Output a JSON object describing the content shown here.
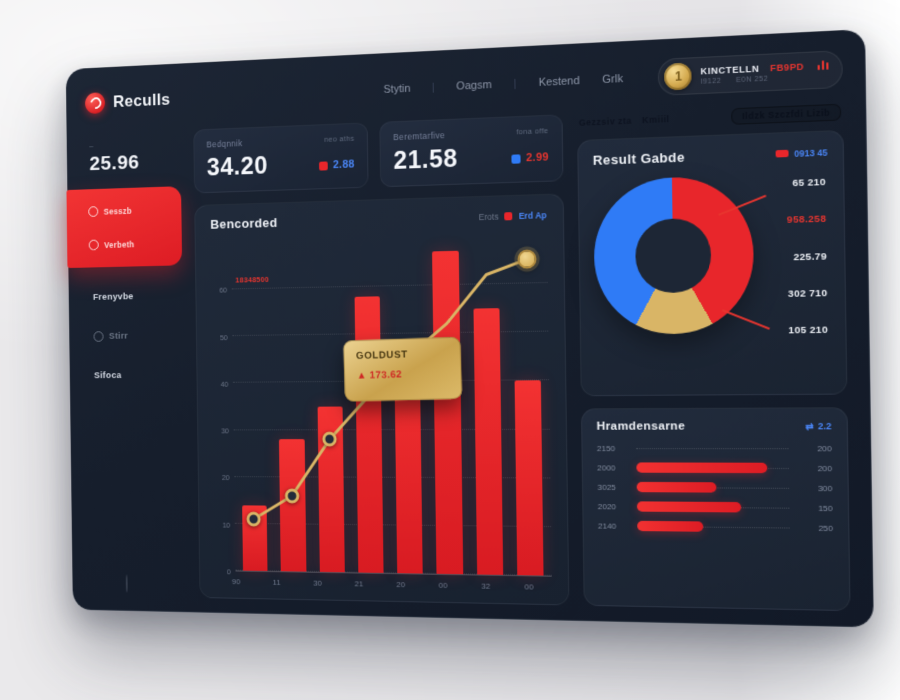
{
  "app": {
    "logo_text": "Reculls"
  },
  "nav": {
    "items": [
      "Stytin",
      "Oagsm",
      "Kestend",
      "Grlk"
    ]
  },
  "user_badge": {
    "coin_text": "1",
    "name": "KINCTELLN",
    "alert": "FB9PD",
    "sub_left": "I9122",
    "sub_right": "E0N 252"
  },
  "sidebar": {
    "stat_label": "–",
    "stat_value": "25.96",
    "active_items": [
      {
        "label": "Sesszb"
      },
      {
        "label": "Verbeth"
      }
    ],
    "items": [
      "Frenyvbe",
      "Stirr",
      "Sifoca"
    ]
  },
  "kpis": [
    {
      "label": "Bedqnnik",
      "side_label": "neo aths",
      "value": "34.20",
      "badge_value": "2.88",
      "marker_color": "#e8262b",
      "value_color": "#4a86f7"
    },
    {
      "label": "Beremtarfive",
      "side_label": "fona offe",
      "value": "21.58",
      "badge_value": "2.99",
      "marker_color": "#2f7bf6",
      "value_color": "#e8352f"
    }
  ],
  "main_chart": {
    "title": "Bencorded",
    "legend_muted": "Erots",
    "legend_value": "Erd Ap",
    "annotation": "18348500",
    "tooltip": {
      "title": "GOLDUST",
      "value": "▲ 173.62"
    },
    "chart_data": {
      "type": "bar+line",
      "categories": [
        "90",
        "11",
        "30",
        "21",
        "20",
        "00",
        "32",
        "00"
      ],
      "series": [
        {
          "name": "bars",
          "values": [
            14,
            28,
            35,
            58,
            45,
            67,
            55,
            40
          ]
        },
        {
          "name": "line",
          "values": [
            11,
            16,
            28,
            37,
            45,
            52,
            62,
            65
          ]
        }
      ],
      "yticks": [
        "60",
        "50",
        "40",
        "30",
        "20",
        "10",
        "0"
      ],
      "ylim": [
        0,
        70
      ],
      "dot_indices": [
        0,
        1,
        2,
        7
      ],
      "bar_color": "#e8262b",
      "line_color": "#d9b566",
      "grid": true,
      "legend_position": "top-right"
    }
  },
  "donut_panel": {
    "title": "Result Gabde",
    "legend_value": "0913 45",
    "chart_data": {
      "type": "donut",
      "slices": [
        {
          "label": "65 210",
          "value": 42,
          "color": "#e8262b"
        },
        {
          "label": "105 210",
          "value": 16,
          "color": "#d9b566"
        },
        {
          "label": "302 710",
          "value": 42,
          "color": "#2f7bf6"
        }
      ]
    },
    "labels": [
      {
        "text": "65 210",
        "color": "#eef1f6"
      },
      {
        "text": "958.258",
        "color": "#e8352f"
      },
      {
        "text": "225.79",
        "color": "#eef1f6"
      },
      {
        "text": "302 710",
        "color": "#eef1f6"
      },
      {
        "text": "105 210",
        "color": "#eef1f6"
      }
    ]
  },
  "hbar_panel": {
    "title": "Hramdensarne",
    "header_value": "2.2",
    "chart_data": {
      "type": "bar",
      "orientation": "horizontal",
      "categories": [
        "2150",
        "2000",
        "3025",
        "2020",
        "2140"
      ],
      "values": [
        0,
        86,
        53,
        69,
        44
      ],
      "right_values": [
        "200",
        "200",
        "300",
        "150",
        "250"
      ],
      "bar_color": "#e8262b"
    }
  },
  "ghost_header": {
    "items": [
      "Gezzsiv zta",
      "Kmiiil"
    ],
    "tab": "Ildzk Szczfdi Lizib"
  },
  "colors": {
    "accent_red": "#e8262b",
    "accent_blue": "#2f7bf6",
    "accent_gold": "#d9b566",
    "panel_bg": "#171f2e"
  }
}
